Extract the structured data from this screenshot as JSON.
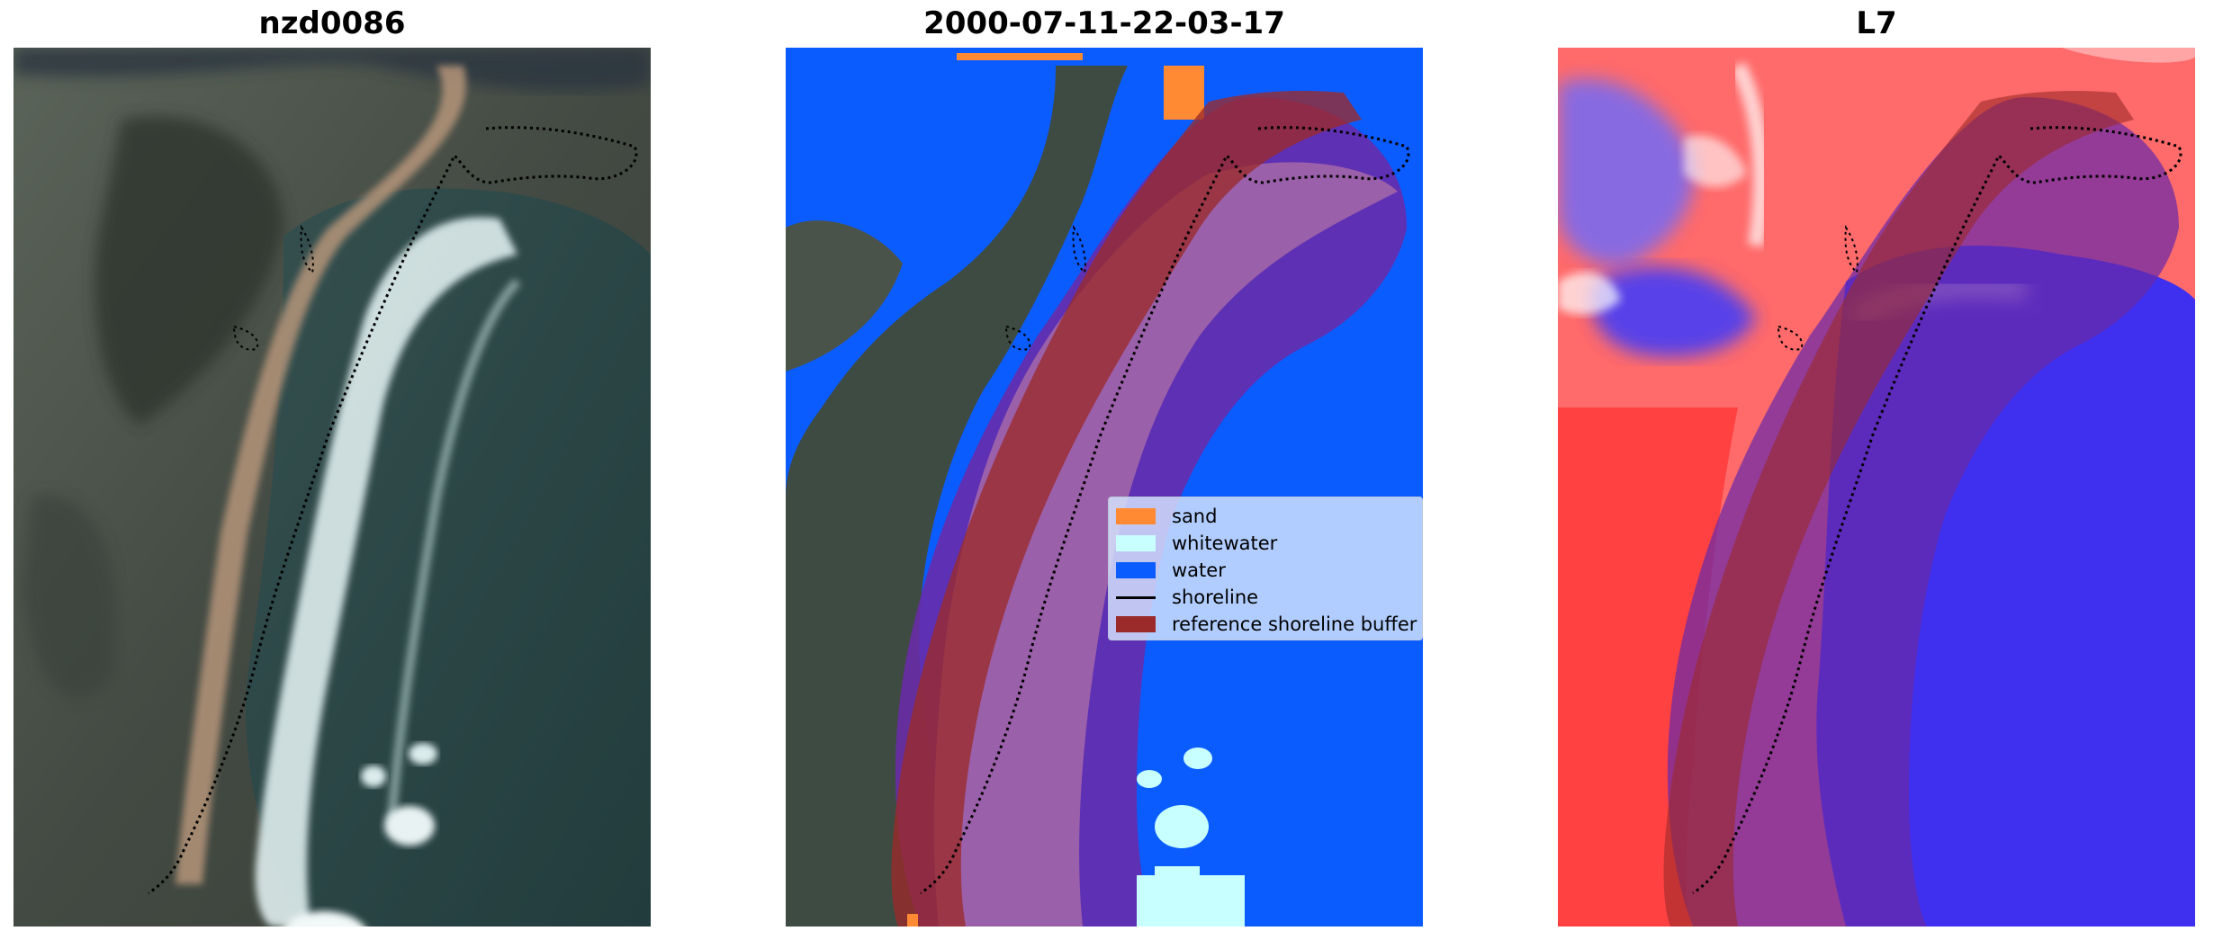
{
  "panels": [
    {
      "title": "nzd0086"
    },
    {
      "title": "2000-07-11-22-03-17"
    },
    {
      "title": "L7"
    }
  ],
  "legend": {
    "items": [
      {
        "label": "sand",
        "color": "#ff8a33",
        "kind": "patch"
      },
      {
        "label": "whitewater",
        "color": "#c8ffff",
        "kind": "patch"
      },
      {
        "label": "water",
        "color": "#0a5cff",
        "kind": "patch"
      },
      {
        "label": "shoreline",
        "color": "#000000",
        "kind": "line"
      },
      {
        "label": "reference shoreline buffer",
        "color": "#9b2a2a",
        "kind": "patch"
      }
    ]
  },
  "colors": {
    "land": "#4a5148",
    "ocean": "#2c4848",
    "sand": "#ff8a33",
    "whitewater": "#c8ffff",
    "water": "#0a5cff",
    "buffer": "#9b2a2a",
    "purple_buffer": "#6a2aa8",
    "index_red": "#ff2a2a",
    "index_blue": "#2a2aff"
  }
}
